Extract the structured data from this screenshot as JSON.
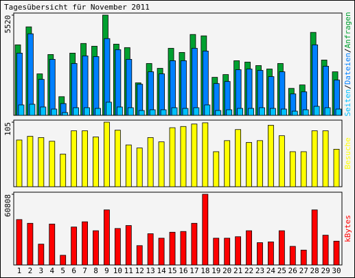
{
  "title": "Tagesübersicht für November 2011",
  "label_separator": "/",
  "chart_data": [
    {
      "type": "bar",
      "ylim": [
        0,
        5520
      ],
      "yticks": [
        5520
      ],
      "series": [
        {
          "name": "Anfragen",
          "color": "#00a030",
          "values": [
            3883,
            4873,
            2284,
            3350,
            1028,
            3426,
            3959,
            3807,
            5520,
            3921,
            3731,
            1789,
            2855,
            2589,
            3693,
            3464,
            4454,
            4378,
            2094,
            2246,
            3008,
            2931,
            2741,
            2551,
            2855,
            1485,
            1675,
            4568,
            3046,
            2398
          ]
        },
        {
          "name": "Dateien",
          "color": "#0080ff",
          "values": [
            3426,
            4492,
            1980,
            3084,
            647,
            2855,
            3274,
            3236,
            4226,
            3617,
            3084,
            1713,
            2398,
            2284,
            3008,
            3008,
            3693,
            3541,
            1751,
            1865,
            2513,
            2551,
            2475,
            2132,
            2398,
            1180,
            1294,
            3883,
            2703,
            1942
          ]
        },
        {
          "name": "Seiten",
          "color": "#00c0ff",
          "values": [
            571,
            609,
            457,
            343,
            152,
            419,
            419,
            381,
            723,
            457,
            419,
            266,
            305,
            305,
            419,
            381,
            419,
            571,
            266,
            305,
            381,
            381,
            419,
            381,
            343,
            228,
            305,
            495,
            419,
            343
          ]
        }
      ]
    },
    {
      "type": "bar",
      "ylim": [
        0,
        105
      ],
      "yticks": [
        105
      ],
      "series": [
        {
          "name": "Besuche",
          "color": "#ffff00",
          "values": [
            76,
            82,
            80,
            74,
            53,
            91,
            91,
            81,
            105,
            92,
            68,
            63,
            80,
            73,
            96,
            98,
            102,
            104,
            57,
            75,
            93,
            72,
            75,
            100,
            83,
            57,
            57,
            91,
            91,
            61
          ]
        }
      ]
    },
    {
      "type": "bar",
      "ylim": [
        0,
        60808
      ],
      "yticks": [
        60808
      ],
      "series": [
        {
          "name": "kBytes",
          "color": "#ff0000",
          "values": [
            39044,
            35845,
            17922,
            35205,
            8321,
            32645,
            37125,
            29444,
            47366,
            31364,
            33925,
            16642,
            26884,
            23043,
            28164,
            28804,
            35845,
            60808,
            23043,
            23043,
            24323,
            29444,
            19203,
            19843,
            29444,
            16002,
            12802,
            47366,
            25603,
            20483
          ]
        }
      ],
      "categories": [
        "1",
        "2",
        "3",
        "4",
        "5",
        "6",
        "7",
        "8",
        "9",
        "10",
        "11",
        "12",
        "13",
        "14",
        "15",
        "16",
        "17",
        "18",
        "19",
        "20",
        "21",
        "22",
        "23",
        "24",
        "25",
        "26",
        "27",
        "28",
        "29",
        "30"
      ],
      "category_colors": [
        "#000",
        "#000",
        "#000",
        "#000",
        "#00a030",
        "#00a030",
        "#000",
        "#000",
        "#000",
        "#000",
        "#000",
        "#00a030",
        "#00a030",
        "#000",
        "#000",
        "#000",
        "#000",
        "#000",
        "#00a030",
        "#00a030",
        "#000",
        "#000",
        "#000",
        "#000",
        "#000",
        "#00a030",
        "#00a030",
        "#000",
        "#000",
        "#000"
      ]
    }
  ]
}
